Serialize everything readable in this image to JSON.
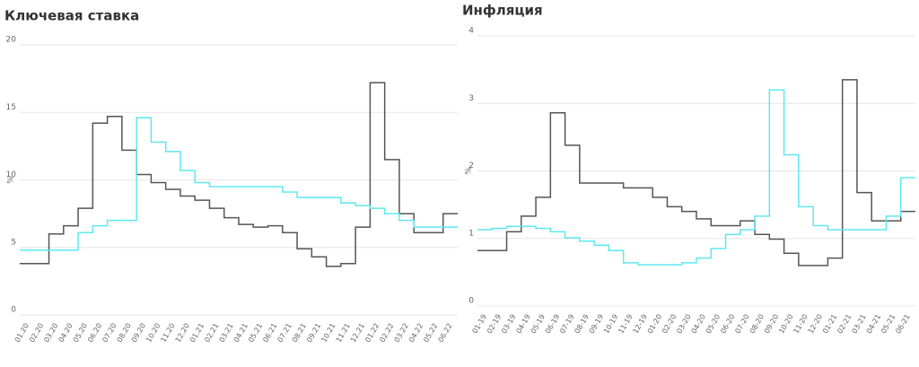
{
  "chart_data": [
    {
      "type": "line",
      "title": "Ключевая ставка",
      "ylabel": "%",
      "categories": [
        "01.20",
        "02.20",
        "03.20",
        "04.20",
        "05.20",
        "06.20",
        "07.20",
        "08.20",
        "09.20",
        "10.20",
        "11.20",
        "12.20",
        "01.21",
        "02.21",
        "03.21",
        "04.21",
        "05.21",
        "06.21",
        "07.21",
        "08.21",
        "09.21",
        "10.21",
        "11.21",
        "12.21",
        "01.22",
        "02.22",
        "03.22",
        "04.22",
        "05.22",
        "06.22"
      ],
      "ylim": [
        0,
        20
      ],
      "yticks": [
        0,
        5,
        10,
        15,
        20
      ],
      "grid": true,
      "series": [
        {
          "color": "#555555",
          "values": [
            3.8,
            3.8,
            6.0,
            6.6,
            7.9,
            14.2,
            14.7,
            12.2,
            10.4,
            9.8,
            9.3,
            8.8,
            8.5,
            7.9,
            7.2,
            6.7,
            6.5,
            6.6,
            6.1,
            4.9,
            4.3,
            3.6,
            3.8,
            6.5,
            17.2,
            11.5,
            7.5,
            6.1,
            6.1,
            7.5
          ]
        },
        {
          "color": "#5ee8f0",
          "values": [
            4.8,
            4.8,
            4.8,
            4.8,
            6.1,
            6.6,
            7.0,
            7.0,
            14.6,
            12.8,
            12.1,
            10.7,
            9.8,
            9.5,
            9.5,
            9.5,
            9.5,
            9.5,
            9.1,
            8.7,
            8.7,
            8.7,
            8.3,
            8.1,
            7.9,
            7.5,
            7.0,
            6.5,
            6.5,
            6.5
          ]
        }
      ]
    },
    {
      "type": "line",
      "title": "Инфляция",
      "ylabel": "%",
      "categories": [
        "01-19",
        "02-19",
        "03-19",
        "04-19",
        "05-19",
        "06-19",
        "07-19",
        "08-19",
        "09-19",
        "10-19",
        "11-19",
        "12-19",
        "01-20",
        "02-20",
        "03-20",
        "04-20",
        "05-20",
        "06-20",
        "07-20",
        "08-20",
        "09-20",
        "10-20",
        "11-20",
        "12-20",
        "01-21",
        "02-21",
        "03-21",
        "04-21",
        "05-21",
        "06-21"
      ],
      "ylim": [
        0,
        4
      ],
      "yticks": [
        0,
        1,
        2,
        3,
        4
      ],
      "grid": true,
      "series": [
        {
          "color": "#555555",
          "values": [
            0.82,
            0.82,
            1.1,
            1.33,
            1.61,
            2.86,
            2.38,
            1.82,
            1.82,
            1.82,
            1.75,
            1.75,
            1.61,
            1.47,
            1.4,
            1.29,
            1.19,
            1.19,
            1.26,
            1.06,
            0.99,
            0.78,
            0.6,
            0.6,
            0.71,
            3.35,
            1.68,
            1.26,
            1.26,
            1.4
          ]
        },
        {
          "color": "#5ee8f0",
          "values": [
            1.13,
            1.15,
            1.18,
            1.18,
            1.15,
            1.1,
            1.01,
            0.96,
            0.9,
            0.82,
            0.64,
            0.61,
            0.61,
            0.61,
            0.64,
            0.71,
            0.85,
            1.06,
            1.13,
            1.33,
            3.2,
            2.24,
            1.47,
            1.19,
            1.13,
            1.13,
            1.13,
            1.13,
            1.33,
            1.9
          ]
        }
      ]
    }
  ]
}
